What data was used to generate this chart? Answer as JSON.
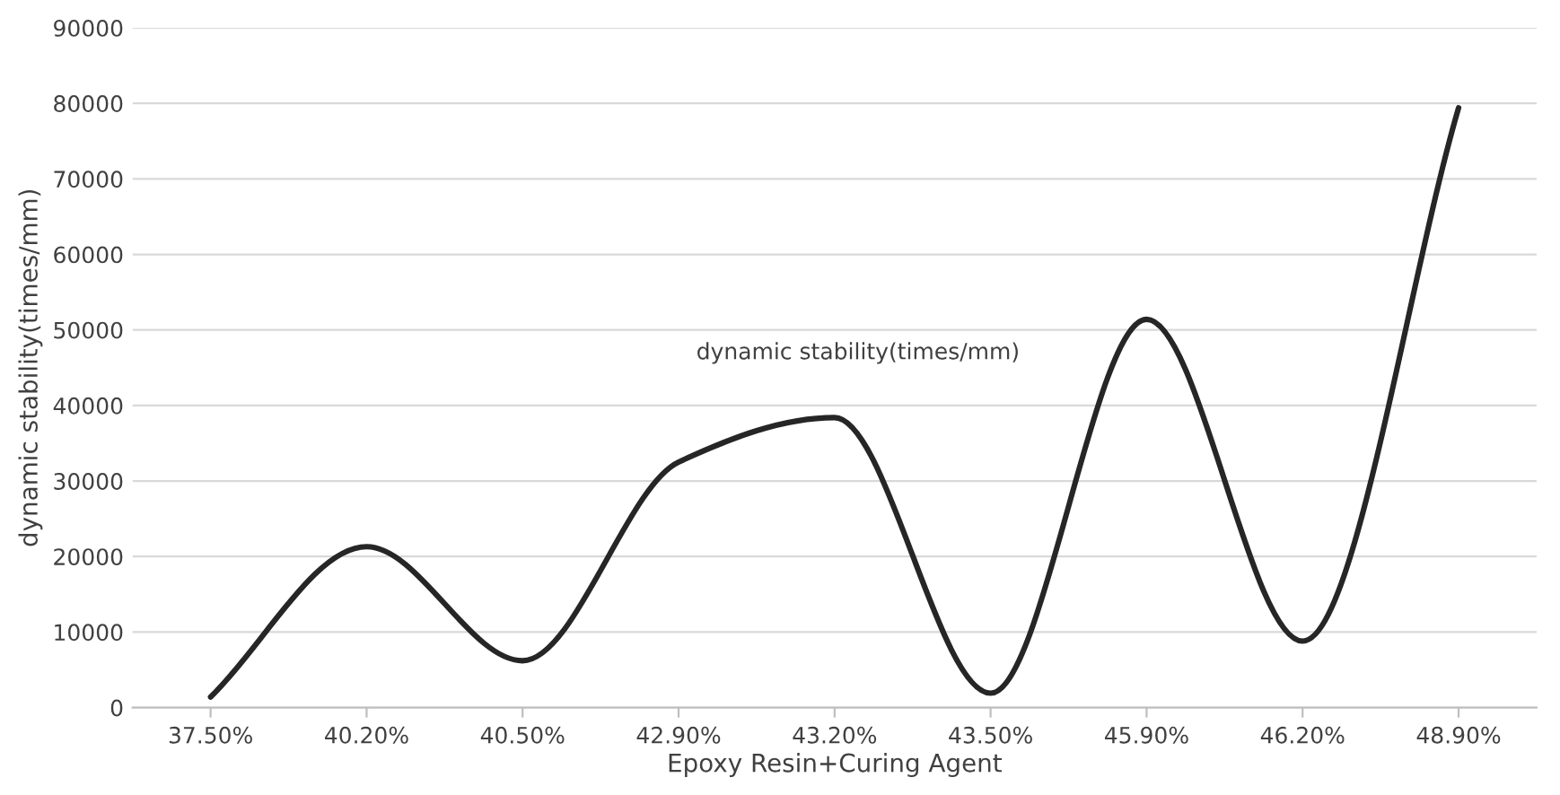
{
  "chart_data": {
    "type": "line",
    "xlabel": "Epoxy Resin+Curing Agent",
    "ylabel": "dynamic stability(times/mm)",
    "categories": [
      "37.50%",
      "40.20%",
      "40.50%",
      "42.90%",
      "43.20%",
      "43.50%",
      "45.90%",
      "46.20%",
      "48.90%"
    ],
    "series": [
      {
        "name": "dynamic stability(times/mm)",
        "color": "#262626",
        "values": [
          1400,
          21300,
          6200,
          32500,
          38400,
          1900,
          51400,
          8800,
          79400
        ]
      }
    ],
    "ylim": [
      0,
      90000
    ],
    "yticks": [
      0,
      10000,
      20000,
      30000,
      40000,
      50000,
      60000,
      70000,
      80000,
      90000
    ],
    "grid": "y",
    "legend": false,
    "marker": "none",
    "line_style": "solid"
  }
}
